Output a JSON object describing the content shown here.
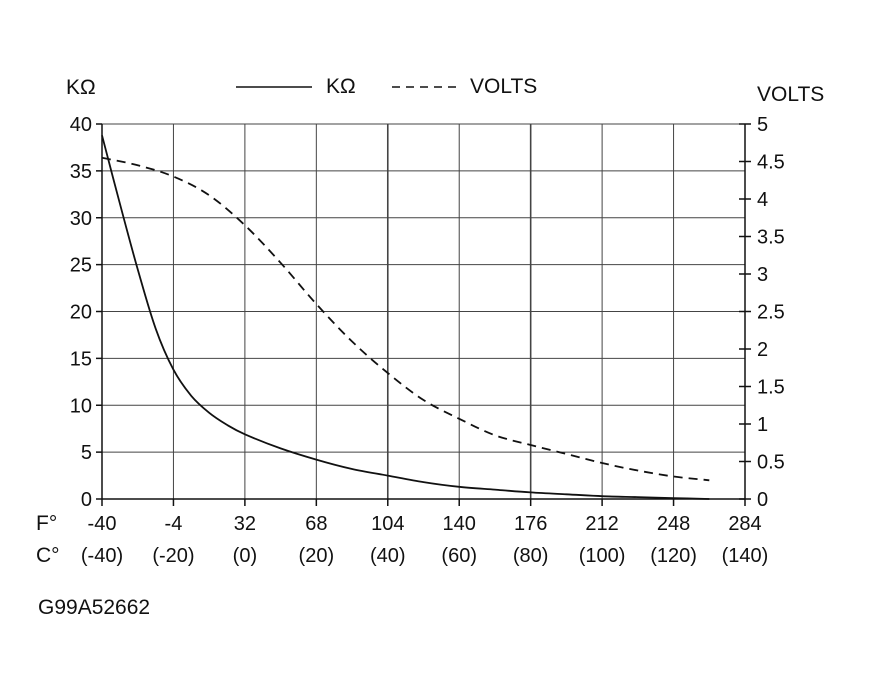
{
  "chart_data": {
    "type": "line",
    "title": "",
    "y_left_label": "KΩ",
    "y_right_label": "VOLTS",
    "legend": [
      {
        "name": "KΩ",
        "style": "solid"
      },
      {
        "name": "VOLTS",
        "style": "dashed"
      }
    ],
    "x_label_f": "F°",
    "x_label_c": "C°",
    "x_ticks_f": [
      "-40",
      "-4",
      "32",
      "68",
      "104",
      "140",
      "176",
      "212",
      "248",
      "284"
    ],
    "x_ticks_c": [
      "(-40)",
      "(-20)",
      "(0)",
      "(20)",
      "(40)",
      "(60)",
      "(80)",
      "(100)",
      "(120)",
      "(140)"
    ],
    "x_range_c": [
      -40,
      140
    ],
    "y_left_ticks": [
      "0",
      "5",
      "10",
      "15",
      "20",
      "25",
      "30",
      "35",
      "40"
    ],
    "y_left_range": [
      0,
      40
    ],
    "y_right_ticks": [
      "0",
      "0.5",
      "1",
      "1.5",
      "2",
      "2.5",
      "3",
      "3.5",
      "4",
      "4.5",
      "5"
    ],
    "y_right_range": [
      0,
      5
    ],
    "grid": true,
    "series": [
      {
        "name": "KΩ",
        "axis": "left",
        "style": "solid",
        "x": [
          -40,
          -35,
          -30,
          -25,
          -20,
          -15,
          -10,
          -5,
          0,
          10,
          20,
          30,
          40,
          50,
          60,
          70,
          80,
          90,
          100,
          110,
          120,
          130
        ],
        "values": [
          38.8,
          31.5,
          24.5,
          18.2,
          13.8,
          11.0,
          9.2,
          7.9,
          6.9,
          5.4,
          4.2,
          3.2,
          2.5,
          1.8,
          1.3,
          1.0,
          0.7,
          0.5,
          0.3,
          0.2,
          0.1,
          0.0
        ]
      },
      {
        "name": "VOLTS",
        "axis": "right",
        "style": "dashed",
        "x": [
          -40,
          -30,
          -20,
          -10,
          0,
          10,
          20,
          30,
          40,
          50,
          60,
          70,
          80,
          90,
          100,
          110,
          120,
          130
        ],
        "values": [
          4.55,
          4.45,
          4.3,
          4.05,
          3.65,
          3.15,
          2.6,
          2.1,
          1.68,
          1.32,
          1.07,
          0.85,
          0.72,
          0.6,
          0.48,
          0.38,
          0.3,
          0.25
        ]
      }
    ]
  },
  "figure_id": "G99A52662"
}
